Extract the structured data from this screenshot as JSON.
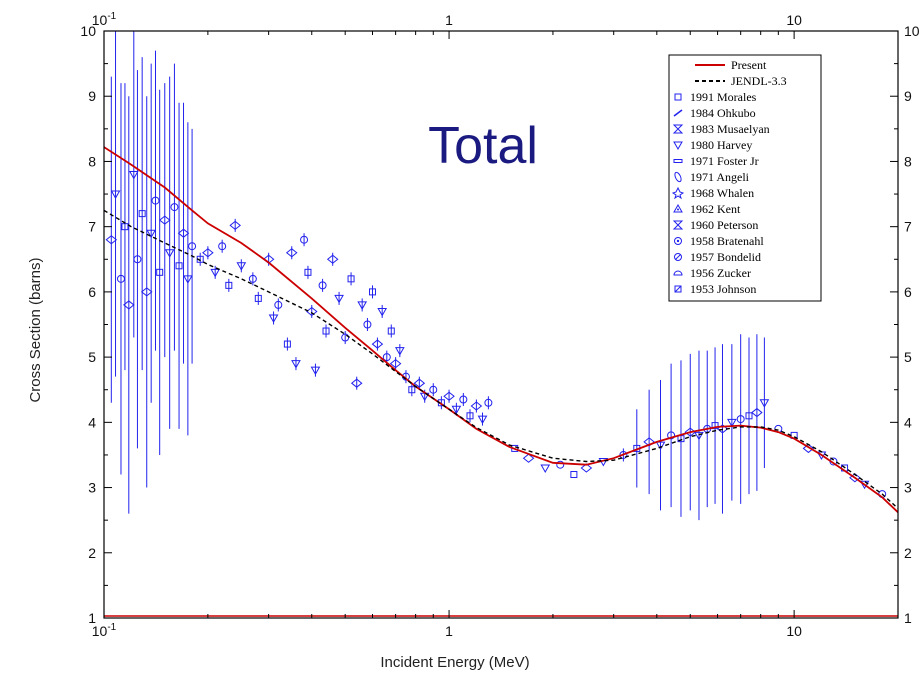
{
  "chart_data": {
    "type": "scatter",
    "title": "Total",
    "xlabel": "Incident Energy (MeV)",
    "ylabel": "Cross Section (barns)",
    "xscale": "log",
    "xlim": [
      0.1,
      20
    ],
    "ylim": [
      1,
      10
    ],
    "x_ticks": [
      {
        "value": 0.1,
        "label": "10",
        "sup": "-1"
      },
      {
        "value": 1,
        "label": "1",
        "sup": ""
      },
      {
        "value": 10,
        "label": "10",
        "sup": ""
      }
    ],
    "y_ticks": [
      {
        "value": 1,
        "label": "1"
      },
      {
        "value": 2,
        "label": "2"
      },
      {
        "value": 3,
        "label": "3"
      },
      {
        "value": 4,
        "label": "4"
      },
      {
        "value": 5,
        "label": "5"
      },
      {
        "value": 6,
        "label": "6"
      },
      {
        "value": 7,
        "label": "7"
      },
      {
        "value": 8,
        "label": "8"
      },
      {
        "value": 9,
        "label": "9"
      },
      {
        "value": 10,
        "label": "10"
      }
    ],
    "grid": false,
    "legend_position": "top-right",
    "legend": [
      {
        "label": "Present",
        "style": "line-solid",
        "color": "#cc0000"
      },
      {
        "label": "JENDL-3.3",
        "style": "line-dashed",
        "color": "#000000"
      },
      {
        "label": "1991 Morales",
        "marker": "square"
      },
      {
        "label": "1984 Ohkubo",
        "marker": "slash"
      },
      {
        "label": "1983 Musaelyan",
        "marker": "bowtie"
      },
      {
        "label": "1980 Harvey",
        "marker": "triangle-down"
      },
      {
        "label": "1971 Foster Jr",
        "marker": "bar"
      },
      {
        "label": "1971 Angeli",
        "marker": "leaf"
      },
      {
        "label": "1968 Whalen",
        "marker": "star-open"
      },
      {
        "label": "1962 Kent",
        "marker": "triangle-up-dot"
      },
      {
        "label": "1960 Peterson",
        "marker": "hourglass"
      },
      {
        "label": "1958 Bratenahl",
        "marker": "circle-dot"
      },
      {
        "label": "1957 Bondelid",
        "marker": "circle-slash"
      },
      {
        "label": "1956 Zucker",
        "marker": "half-disc"
      },
      {
        "label": "1953 Johnson",
        "marker": "square-slash"
      }
    ],
    "series": [
      {
        "name": "Present",
        "kind": "line",
        "color": "#cc0000",
        "x": [
          0.1,
          0.12,
          0.15,
          0.18,
          0.2,
          0.25,
          0.3,
          0.4,
          0.5,
          0.6,
          0.7,
          0.8,
          1.0,
          1.2,
          1.5,
          2.0,
          2.5,
          3.0,
          4.0,
          5.0,
          6.0,
          7.0,
          8.0,
          9.0,
          10.0,
          12.0,
          15.0,
          18.0,
          20.0
        ],
        "y": [
          8.22,
          7.95,
          7.6,
          7.25,
          7.05,
          6.75,
          6.45,
          5.9,
          5.45,
          5.1,
          4.8,
          4.55,
          4.2,
          3.9,
          3.62,
          3.38,
          3.35,
          3.45,
          3.7,
          3.85,
          3.93,
          3.95,
          3.92,
          3.85,
          3.75,
          3.5,
          3.15,
          2.85,
          2.62
        ]
      },
      {
        "name": "JENDL-3.3",
        "kind": "line",
        "color": "#000000",
        "dashed": true,
        "x": [
          0.1,
          0.12,
          0.15,
          0.18,
          0.2,
          0.25,
          0.3,
          0.4,
          0.5,
          0.6,
          0.7,
          0.8,
          1.0,
          1.2,
          1.5,
          2.0,
          2.5,
          3.0,
          4.0,
          5.0,
          6.0,
          7.0,
          8.0,
          9.0,
          10.0,
          12.0,
          15.0,
          18.0,
          20.0
        ],
        "y": [
          7.25,
          7.0,
          6.75,
          6.55,
          6.42,
          6.2,
          6.0,
          5.68,
          5.35,
          5.05,
          4.78,
          4.55,
          4.2,
          3.92,
          3.65,
          3.45,
          3.4,
          3.42,
          3.6,
          3.78,
          3.88,
          3.93,
          3.93,
          3.88,
          3.78,
          3.55,
          3.2,
          2.9,
          2.68
        ]
      },
      {
        "name": "measurements",
        "kind": "scatter",
        "color": "#2222ee",
        "points": [
          {
            "x": 0.105,
            "y": 6.8,
            "err": 2.5
          },
          {
            "x": 0.108,
            "y": 7.5,
            "err": 2.8
          },
          {
            "x": 0.112,
            "y": 6.2,
            "err": 3.0
          },
          {
            "x": 0.115,
            "y": 7.0,
            "err": 2.2
          },
          {
            "x": 0.118,
            "y": 5.8,
            "err": 3.2
          },
          {
            "x": 0.122,
            "y": 7.8,
            "err": 2.5
          },
          {
            "x": 0.125,
            "y": 6.5,
            "err": 2.9
          },
          {
            "x": 0.129,
            "y": 7.2,
            "err": 2.4
          },
          {
            "x": 0.133,
            "y": 6.0,
            "err": 3.0
          },
          {
            "x": 0.137,
            "y": 6.9,
            "err": 2.6
          },
          {
            "x": 0.141,
            "y": 7.4,
            "err": 2.3
          },
          {
            "x": 0.145,
            "y": 6.3,
            "err": 2.8
          },
          {
            "x": 0.15,
            "y": 7.1,
            "err": 2.1
          },
          {
            "x": 0.155,
            "y": 6.6,
            "err": 2.7
          },
          {
            "x": 0.16,
            "y": 7.3,
            "err": 2.2
          },
          {
            "x": 0.165,
            "y": 6.4,
            "err": 2.5
          },
          {
            "x": 0.17,
            "y": 6.9,
            "err": 2.0
          },
          {
            "x": 0.175,
            "y": 6.2,
            "err": 2.4
          },
          {
            "x": 0.18,
            "y": 6.7,
            "err": 1.8
          },
          {
            "x": 0.19,
            "y": 6.5,
            "err": 0.1
          },
          {
            "x": 0.2,
            "y": 6.6,
            "err": 0.1
          },
          {
            "x": 0.21,
            "y": 6.3,
            "err": 0.1
          },
          {
            "x": 0.22,
            "y": 6.7,
            "err": 0.1
          },
          {
            "x": 0.23,
            "y": 6.1,
            "err": 0.1
          },
          {
            "x": 0.24,
            "y": 7.02,
            "err": 0.1
          },
          {
            "x": 0.25,
            "y": 6.4,
            "err": 0.1
          },
          {
            "x": 0.27,
            "y": 6.2,
            "err": 0.1
          },
          {
            "x": 0.28,
            "y": 5.9,
            "err": 0.1
          },
          {
            "x": 0.3,
            "y": 6.5,
            "err": 0.1
          },
          {
            "x": 0.31,
            "y": 5.6,
            "err": 0.1
          },
          {
            "x": 0.32,
            "y": 5.8,
            "err": 0.1
          },
          {
            "x": 0.34,
            "y": 5.2,
            "err": 0.1
          },
          {
            "x": 0.35,
            "y": 6.6,
            "err": 0.1
          },
          {
            "x": 0.36,
            "y": 4.9,
            "err": 0.1
          },
          {
            "x": 0.38,
            "y": 6.8,
            "err": 0.1
          },
          {
            "x": 0.39,
            "y": 6.3,
            "err": 0.1
          },
          {
            "x": 0.4,
            "y": 5.7,
            "err": 0.1
          },
          {
            "x": 0.41,
            "y": 4.8,
            "err": 0.1
          },
          {
            "x": 0.43,
            "y": 6.1,
            "err": 0.1
          },
          {
            "x": 0.44,
            "y": 5.4,
            "err": 0.1
          },
          {
            "x": 0.46,
            "y": 6.5,
            "err": 0.1
          },
          {
            "x": 0.48,
            "y": 5.9,
            "err": 0.1
          },
          {
            "x": 0.5,
            "y": 5.3,
            "err": 0.1
          },
          {
            "x": 0.52,
            "y": 6.2,
            "err": 0.1
          },
          {
            "x": 0.54,
            "y": 4.6,
            "err": 0.1
          },
          {
            "x": 0.56,
            "y": 5.8,
            "err": 0.1
          },
          {
            "x": 0.58,
            "y": 5.5,
            "err": 0.1
          },
          {
            "x": 0.6,
            "y": 6.0,
            "err": 0.1
          },
          {
            "x": 0.62,
            "y": 5.2,
            "err": 0.1
          },
          {
            "x": 0.64,
            "y": 5.7,
            "err": 0.1
          },
          {
            "x": 0.66,
            "y": 5.0,
            "err": 0.1
          },
          {
            "x": 0.68,
            "y": 5.4,
            "err": 0.1
          },
          {
            "x": 0.7,
            "y": 4.9,
            "err": 0.1
          },
          {
            "x": 0.72,
            "y": 5.1,
            "err": 0.1
          },
          {
            "x": 0.75,
            "y": 4.7,
            "err": 0.1
          },
          {
            "x": 0.78,
            "y": 4.5,
            "err": 0.1
          },
          {
            "x": 0.82,
            "y": 4.6,
            "err": 0.1
          },
          {
            "x": 0.85,
            "y": 4.4,
            "err": 0.1
          },
          {
            "x": 0.9,
            "y": 4.5,
            "err": 0.1
          },
          {
            "x": 0.95,
            "y": 4.3,
            "err": 0.1
          },
          {
            "x": 1.0,
            "y": 4.4,
            "err": 0.1
          },
          {
            "x": 1.05,
            "y": 4.2,
            "err": 0.1
          },
          {
            "x": 1.1,
            "y": 4.35,
            "err": 0.1
          },
          {
            "x": 1.15,
            "y": 4.1,
            "err": 0.1
          },
          {
            "x": 1.2,
            "y": 4.25,
            "err": 0.1
          },
          {
            "x": 1.25,
            "y": 4.05,
            "err": 0.1
          },
          {
            "x": 1.3,
            "y": 4.3,
            "err": 0.1
          },
          {
            "x": 1.55,
            "y": 3.6,
            "err": 0.05
          },
          {
            "x": 1.7,
            "y": 3.45,
            "err": 0.05
          },
          {
            "x": 1.9,
            "y": 3.3,
            "err": 0.05
          },
          {
            "x": 2.1,
            "y": 3.35,
            "err": 0.05
          },
          {
            "x": 2.3,
            "y": 3.2,
            "err": 0.05
          },
          {
            "x": 2.5,
            "y": 3.3,
            "err": 0.05
          },
          {
            "x": 2.8,
            "y": 3.4,
            "err": 0.05
          },
          {
            "x": 3.2,
            "y": 3.5,
            "err": 0.1
          },
          {
            "x": 3.5,
            "y": 3.6,
            "err": 0.6
          },
          {
            "x": 3.8,
            "y": 3.7,
            "err": 0.8
          },
          {
            "x": 4.1,
            "y": 3.65,
            "err": 1.0
          },
          {
            "x": 4.4,
            "y": 3.8,
            "err": 1.1
          },
          {
            "x": 4.7,
            "y": 3.75,
            "err": 1.2
          },
          {
            "x": 5.0,
            "y": 3.85,
            "err": 1.2
          },
          {
            "x": 5.3,
            "y": 3.8,
            "err": 1.3
          },
          {
            "x": 5.6,
            "y": 3.9,
            "err": 1.2
          },
          {
            "x": 5.9,
            "y": 3.95,
            "err": 1.2
          },
          {
            "x": 6.2,
            "y": 3.9,
            "err": 1.3
          },
          {
            "x": 6.6,
            "y": 4.0,
            "err": 1.2
          },
          {
            "x": 7.0,
            "y": 4.05,
            "err": 1.3
          },
          {
            "x": 7.4,
            "y": 4.1,
            "err": 1.2
          },
          {
            "x": 7.8,
            "y": 4.15,
            "err": 1.2
          },
          {
            "x": 8.2,
            "y": 4.3,
            "err": 1.0
          },
          {
            "x": 9.0,
            "y": 3.9,
            "err": 0.05
          },
          {
            "x": 10.0,
            "y": 3.8,
            "err": 0.05
          },
          {
            "x": 11.0,
            "y": 3.6,
            "err": 0.05
          },
          {
            "x": 12.0,
            "y": 3.5,
            "err": 0.05
          },
          {
            "x": 13.0,
            "y": 3.4,
            "err": 0.05
          },
          {
            "x": 14.0,
            "y": 3.3,
            "err": 0.05
          },
          {
            "x": 15.0,
            "y": 3.15,
            "err": 0.05
          },
          {
            "x": 16.0,
            "y": 3.05,
            "err": 0.05
          },
          {
            "x": 18.0,
            "y": 2.9,
            "err": 0.05
          }
        ]
      }
    ]
  }
}
